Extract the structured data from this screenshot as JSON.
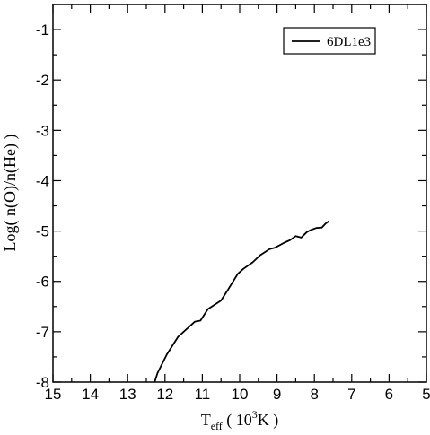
{
  "chart_data": {
    "type": "line",
    "title": "",
    "xlabel": {
      "main": "T",
      "sub": "eff",
      "rest_open": " ( 10",
      "sup": "3",
      "rest_close": "K )"
    },
    "ylabel": "Log( n(O)/n(He) )",
    "xlim": [
      15,
      5
    ],
    "x_reversed": true,
    "ylim": [
      -8,
      -0.5
    ],
    "xticks": [
      15,
      14,
      13,
      12,
      11,
      10,
      9,
      8,
      7,
      6,
      5
    ],
    "xtick_labels": [
      "15",
      "14",
      "13",
      "12",
      "11",
      "10",
      "9",
      "8",
      "7",
      "6",
      "5"
    ],
    "yticks": [
      -8,
      -7,
      -6,
      -5,
      -4,
      -3,
      -2,
      -1
    ],
    "ytick_labels": [
      "-8",
      "-7",
      "-6",
      "-5",
      "-4",
      "-3",
      "-2",
      "-1"
    ],
    "grid": false,
    "legend_position": "top-right",
    "series": [
      {
        "name": "6DL1e3",
        "color": "#000000",
        "x": [
          12.28,
          12.2,
          11.95,
          11.65,
          11.2,
          11.05,
          10.85,
          10.5,
          10.3,
          10.05,
          9.9,
          9.65,
          9.45,
          9.2,
          9.05,
          8.8,
          8.65,
          8.5,
          8.35,
          8.2,
          8.1,
          7.95,
          7.8,
          7.7,
          7.6
        ],
        "y": [
          -8.0,
          -7.82,
          -7.45,
          -7.1,
          -6.8,
          -6.78,
          -6.55,
          -6.38,
          -6.15,
          -5.85,
          -5.75,
          -5.62,
          -5.48,
          -5.36,
          -5.33,
          -5.23,
          -5.18,
          -5.1,
          -5.13,
          -5.02,
          -4.98,
          -4.94,
          -4.93,
          -4.85,
          -4.8
        ]
      }
    ]
  }
}
